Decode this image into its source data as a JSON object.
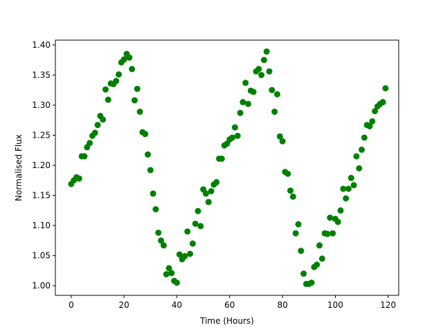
{
  "chart_data": {
    "type": "scatter",
    "xlabel": "Time (Hours)",
    "ylabel": "Normalised Flux",
    "xlim": [
      -6,
      124
    ],
    "ylim": [
      0.984,
      1.408
    ],
    "xticks": [
      0,
      20,
      40,
      60,
      80,
      100,
      120
    ],
    "xtick_labels": [
      "0",
      "20",
      "40",
      "60",
      "80",
      "100",
      "120"
    ],
    "yticks": [
      1.0,
      1.05,
      1.1,
      1.15,
      1.2,
      1.25,
      1.3,
      1.35,
      1.4
    ],
    "ytick_labels": [
      "1.00",
      "1.05",
      "1.10",
      "1.15",
      "1.20",
      "1.25",
      "1.30",
      "1.35",
      "1.40"
    ],
    "grid": false,
    "marker_color": "#008000",
    "series": [
      {
        "x": [
          0,
          1,
          2,
          3,
          4,
          5,
          6,
          7,
          8,
          9,
          10,
          11,
          12,
          13,
          14,
          15,
          16,
          17,
          18,
          19,
          20,
          21,
          22,
          23,
          24,
          25,
          26,
          27,
          28,
          29,
          30,
          31,
          32,
          33,
          34,
          35,
          36,
          37,
          38,
          39,
          40,
          41,
          42,
          43,
          44,
          45,
          46,
          47,
          48,
          49,
          50,
          51,
          52,
          53,
          54,
          55,
          56,
          57,
          58,
          59,
          60,
          61,
          62,
          63,
          64,
          65,
          66,
          67,
          68,
          69,
          70,
          71,
          72,
          73,
          74,
          75,
          76,
          77,
          78,
          79,
          80,
          81,
          82,
          83,
          84,
          85,
          86,
          87,
          88,
          89,
          90,
          91,
          92,
          93,
          94,
          95,
          96,
          97,
          98,
          99,
          100,
          101,
          102,
          103,
          104,
          105,
          106,
          107,
          108,
          109,
          110,
          111,
          112,
          113,
          114,
          115,
          116,
          117,
          118,
          119
        ],
        "y": [
          1.169,
          1.175,
          1.18,
          1.178,
          1.215,
          1.215,
          1.23,
          1.237,
          1.249,
          1.254,
          1.267,
          1.282,
          1.276,
          1.326,
          1.309,
          1.336,
          1.335,
          1.34,
          1.351,
          1.371,
          1.376,
          1.385,
          1.379,
          1.36,
          1.308,
          1.327,
          1.289,
          1.255,
          1.252,
          1.218,
          1.192,
          1.153,
          1.127,
          1.088,
          1.075,
          1.067,
          1.019,
          1.029,
          1.021,
          1.008,
          1.005,
          1.052,
          1.044,
          1.049,
          1.09,
          1.053,
          1.07,
          1.103,
          1.124,
          1.099,
          1.16,
          1.153,
          1.139,
          1.157,
          1.168,
          1.172,
          1.211,
          1.211,
          1.233,
          1.236,
          1.243,
          1.246,
          1.263,
          1.249,
          1.287,
          1.305,
          1.337,
          1.302,
          1.324,
          1.322,
          1.356,
          1.36,
          1.35,
          1.375,
          1.389,
          1.356,
          1.325,
          1.289,
          1.318,
          1.248,
          1.24,
          1.189,
          1.186,
          1.158,
          1.148,
          1.087,
          1.102,
          1.058,
          1.02,
          1.003,
          1.003,
          1.005,
          1.031,
          1.035,
          1.067,
          1.045,
          1.087,
          1.086,
          1.113,
          1.087,
          1.111,
          1.106,
          1.125,
          1.161,
          1.145,
          1.161,
          1.179,
          1.167,
          1.215,
          1.195,
          1.226,
          1.246,
          1.267,
          1.265,
          1.273,
          1.29,
          1.298,
          1.302,
          1.305,
          1.328
        ]
      }
    ]
  }
}
